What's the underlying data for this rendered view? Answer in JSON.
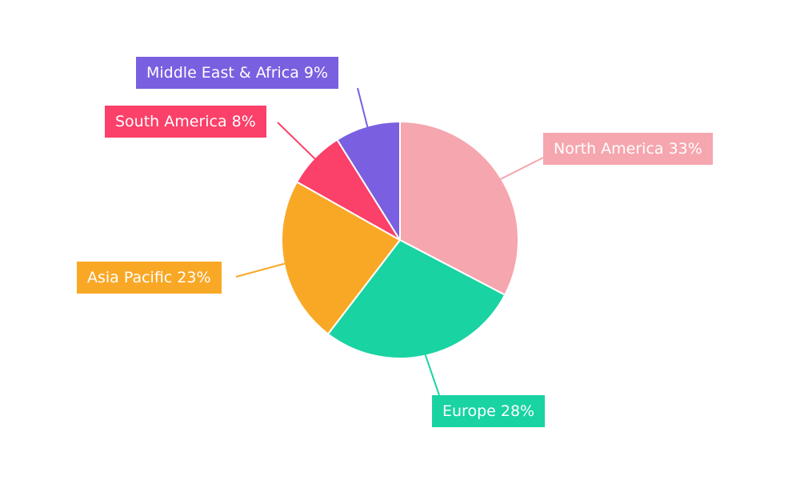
{
  "chart_data": {
    "type": "pie",
    "title": "",
    "start_angle_deg": 0,
    "direction": "clockwise",
    "legend_position": "outside-callouts",
    "background": "#FFFFFF",
    "label_text_color": "#FFFFFF",
    "slices": [
      {
        "label": "North America",
        "value": 33,
        "display": "North America 33%",
        "color": "#F5A6AE"
      },
      {
        "label": "Europe",
        "value": 28,
        "display": "Europe 28%",
        "color": "#19D3A2"
      },
      {
        "label": "Asia Pacific",
        "value": 23,
        "display": "Asia Pacific 23%",
        "color": "#F9A826"
      },
      {
        "label": "South America",
        "value": 8,
        "display": "South America 8%",
        "color": "#FB4069"
      },
      {
        "label": "Middle East & Africa",
        "value": 9,
        "display": "Middle East & Africa 9%",
        "color": "#7A5FE0"
      }
    ]
  }
}
